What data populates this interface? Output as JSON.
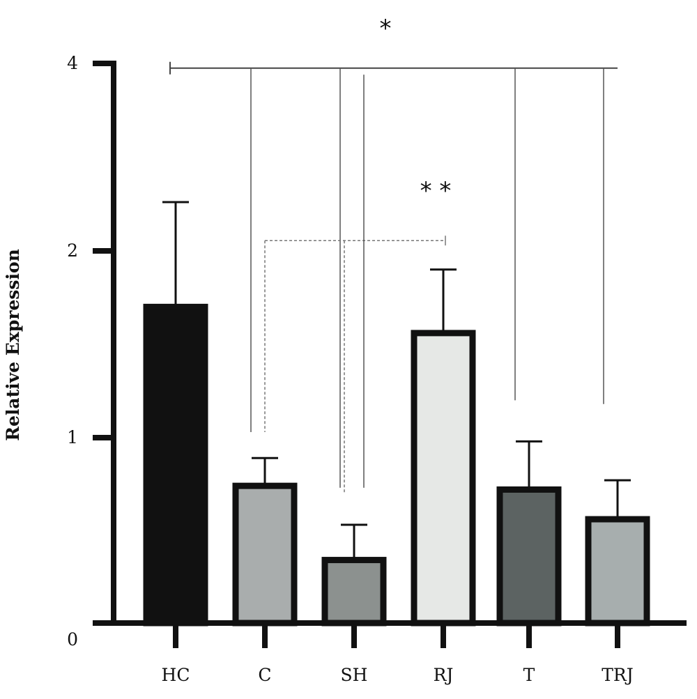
{
  "chart_data": {
    "type": "bar",
    "title": "",
    "xlabel": "",
    "ylabel": "Relative Expression",
    "categories": [
      "HC",
      "C",
      "SH",
      "RJ",
      "T",
      "TRJ"
    ],
    "values": [
      1.7,
      0.74,
      0.34,
      1.56,
      0.72,
      0.56
    ],
    "error": [
      0.82,
      0.15,
      0.19,
      0.34,
      0.26,
      0.21
    ],
    "bar_colors": [
      "#111111",
      "#a9adad",
      "#8c918f",
      "#e6e8e6",
      "#5c6362",
      "#a7aeae"
    ],
    "y_ticks": [
      {
        "value": 0,
        "label": "0"
      },
      {
        "value": 1,
        "label": "1"
      },
      {
        "value": 2,
        "label": "2"
      },
      {
        "value": 4,
        "label": "4"
      }
    ],
    "ylim": [
      0,
      4
    ],
    "grid": false,
    "legend": "none",
    "annotations": {
      "top": {
        "label": "*",
        "from": "HC",
        "bar_value": 3.95,
        "drops": [
          {
            "category": "C",
            "to_value": 1.03
          },
          {
            "category": "SH",
            "to_value": 0.73
          },
          {
            "category": "T",
            "to_value": 1.2
          },
          {
            "category": "TRJ",
            "to_value": 1.18
          }
        ]
      },
      "inner": {
        "label": "* *",
        "to": "RJ",
        "bar_value": 2.11,
        "drops": [
          {
            "category": "C",
            "to_value": 1.03
          },
          {
            "category": "SH",
            "to_value": 0.7
          }
        ]
      }
    }
  }
}
